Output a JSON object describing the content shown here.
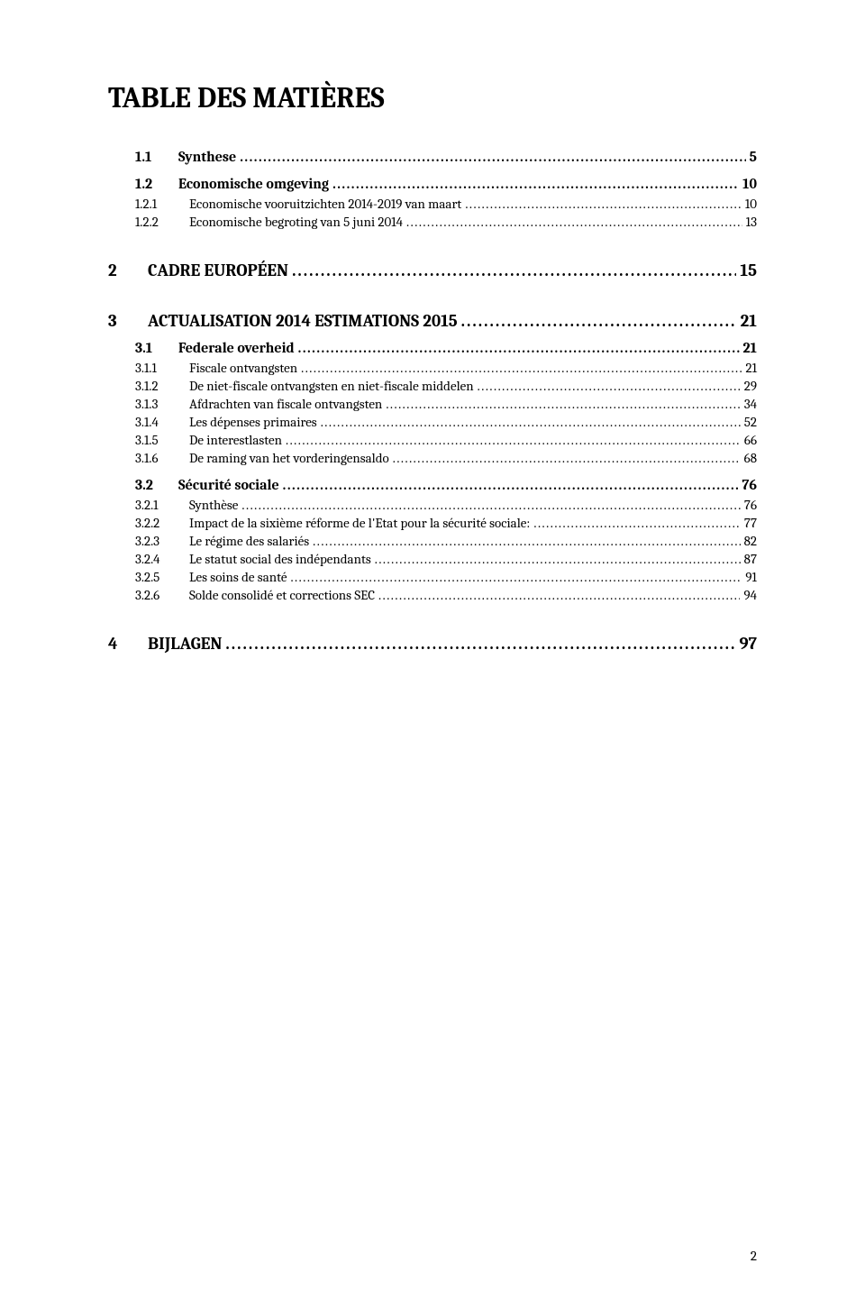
{
  "document": {
    "title": "TABLE DES MATIÈRES",
    "page_number": "2",
    "background_color": "#ffffff",
    "text_color": "#000000",
    "font_family": "Cambria, Georgia, serif",
    "title_fontsize": 32,
    "lvl1_fontsize": 19,
    "lvl2_fontsize": 16,
    "lvl3_fontsize": 15
  },
  "toc": [
    {
      "level": "lvl2",
      "number": "1.1",
      "text": "Synthese",
      "page": "5"
    },
    {
      "level": "lvl2",
      "number": "1.2",
      "text": "Economische omgeving",
      "page": "10",
      "extraClass": "group-gap"
    },
    {
      "level": "lvl3",
      "number": "1.2.1",
      "text": "Economische vooruitzichten 2014-2019 van maart",
      "page": "10"
    },
    {
      "level": "lvl3",
      "number": "1.2.2",
      "text": "Economische begroting van 5 juni 2014",
      "page": "13"
    },
    {
      "level": "lvl1",
      "number": "2",
      "text": "CADRE EUROPÉEN",
      "page": "15"
    },
    {
      "level": "lvl1",
      "number": "3",
      "text": "ACTUALISATION 2014 ESTIMATIONS 2015",
      "page": "21"
    },
    {
      "level": "lvl2",
      "number": "3.1",
      "text": "Federale overheid",
      "page": "21"
    },
    {
      "level": "lvl3",
      "number": "3.1.1",
      "text": "Fiscale ontvangsten",
      "page": "21"
    },
    {
      "level": "lvl3",
      "number": "3.1.2",
      "text": "De niet-fiscale ontvangsten en niet-fiscale middelen",
      "page": "29"
    },
    {
      "level": "lvl3",
      "number": "3.1.3",
      "text": "Afdrachten van fiscale ontvangsten",
      "page": "34"
    },
    {
      "level": "lvl3",
      "number": "3.1.4",
      "text": "Les dépenses primaires",
      "page": "52"
    },
    {
      "level": "lvl3",
      "number": "3.1.5",
      "text": "De interestlasten",
      "page": "66"
    },
    {
      "level": "lvl3",
      "number": "3.1.6",
      "text": "De raming van het vorderingensaldo",
      "page": "68"
    },
    {
      "level": "lvl2",
      "number": "3.2",
      "text": "Sécurité sociale",
      "page": "76",
      "extraClass": "group-gap"
    },
    {
      "level": "lvl3",
      "number": "3.2.1",
      "text": "Synthèse",
      "page": "76"
    },
    {
      "level": "lvl3",
      "number": "3.2.2",
      "text": "Impact de la sixième réforme de l'Etat pour la sécurité sociale:",
      "page": "77"
    },
    {
      "level": "lvl3",
      "number": "3.2.3",
      "text": "Le régime des salariés",
      "page": "82"
    },
    {
      "level": "lvl3",
      "number": "3.2.4",
      "text": "Le statut social des indépendants",
      "page": "87"
    },
    {
      "level": "lvl3",
      "number": "3.2.5",
      "text": "Les soins de santé",
      "page": "91"
    },
    {
      "level": "lvl3",
      "number": "3.2.6",
      "text": "Solde consolidé et corrections SEC",
      "page": "94"
    },
    {
      "level": "lvl1",
      "number": "4",
      "text": "BIJLAGEN",
      "page": "97"
    }
  ]
}
